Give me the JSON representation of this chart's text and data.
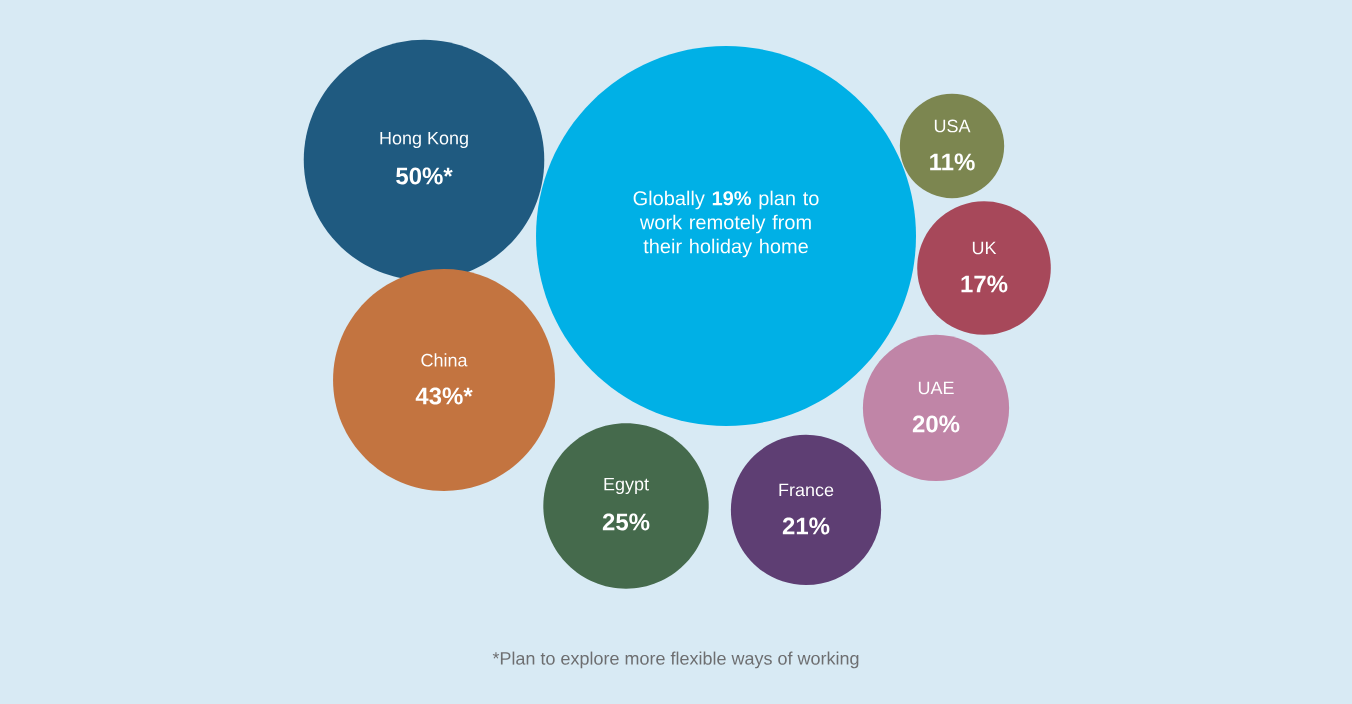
{
  "chart_data": {
    "type": "other",
    "title": "Globally **19%** plan to work remotely from their holiday home",
    "color": "#00b0e6",
    "categories": [
      "Hong Kong",
      "China",
      "Egypt",
      "France",
      "UAE",
      "UK",
      "USA"
    ],
    "values": [
      50,
      43,
      25,
      21,
      20,
      17,
      11
    ],
    "value_labels": [
      "50%*",
      "43%*",
      "25%",
      "21%",
      "20%",
      "17%",
      "11%"
    ],
    "colors": [
      "#1f5a80",
      "#c37440",
      "#456a4c",
      "#5e3e73",
      "#c085a7",
      "#a7485a",
      "#7c8650"
    ],
    "annotations": [
      "*Plan to explore more flexible ways of working"
    ]
  }
}
